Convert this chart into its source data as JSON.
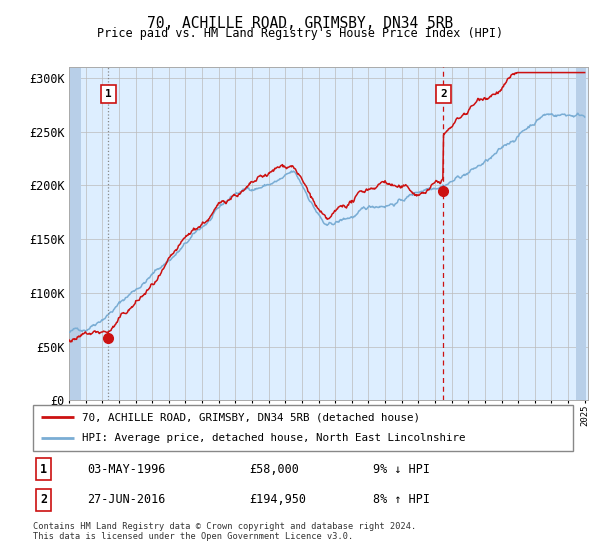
{
  "title": "70, ACHILLE ROAD, GRIMSBY, DN34 5RB",
  "subtitle": "Price paid vs. HM Land Registry's House Price Index (HPI)",
  "x_start_year": 1994,
  "x_end_year": 2025,
  "ylim": [
    0,
    310000
  ],
  "yticks": [
    0,
    50000,
    100000,
    150000,
    200000,
    250000,
    300000
  ],
  "ytick_labels": [
    "£0",
    "£50K",
    "£100K",
    "£150K",
    "£200K",
    "£250K",
    "£300K"
  ],
  "hpi_color": "#7aadd4",
  "price_color": "#cc1111",
  "marker_color": "#cc1111",
  "vline1_color": "#888888",
  "vline2_color": "#cc1111",
  "bg_color": "#ddeeff",
  "hatch_color": "#b8cfe8",
  "grid_color": "#bbbbbb",
  "sale1_year": 1996.37,
  "sale1_price": 58000,
  "sale1_label": "1",
  "sale1_date": "03-MAY-1996",
  "sale1_price_str": "£58,000",
  "sale1_hpi": "9% ↓ HPI",
  "sale2_year": 2016.5,
  "sale2_price": 194950,
  "sale2_label": "2",
  "sale2_date": "27-JUN-2016",
  "sale2_price_str": "£194,950",
  "sale2_hpi": "8% ↑ HPI",
  "legend_line1": "70, ACHILLE ROAD, GRIMSBY, DN34 5RB (detached house)",
  "legend_line2": "HPI: Average price, detached house, North East Lincolnshire",
  "footer": "Contains HM Land Registry data © Crown copyright and database right 2024.\nThis data is licensed under the Open Government Licence v3.0.",
  "random_seed": 42
}
